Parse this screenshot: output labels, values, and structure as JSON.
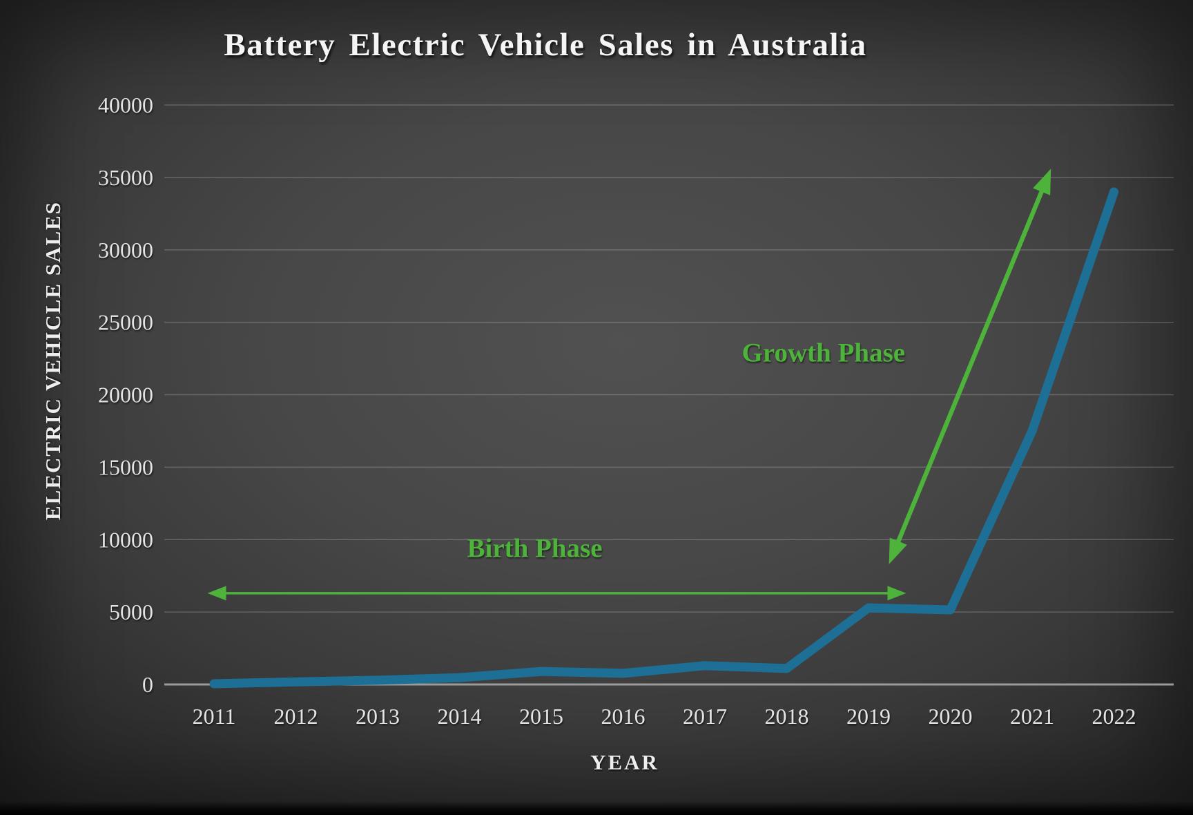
{
  "chart_data": {
    "type": "line",
    "title": "Battery Electric Vehicle Sales in Australia",
    "xlabel": "YEAR",
    "ylabel": "ELECTRIC VEHICLE SALES",
    "x": [
      2011,
      2012,
      2013,
      2014,
      2015,
      2016,
      2017,
      2018,
      2019,
      2020,
      2021,
      2022
    ],
    "values": [
      50,
      180,
      290,
      470,
      900,
      770,
      1300,
      1100,
      5290,
      5150,
      17500,
      34000
    ],
    "ylim": [
      0,
      40000
    ],
    "yticks": [
      0,
      5000,
      10000,
      15000,
      20000,
      25000,
      30000,
      35000,
      40000
    ],
    "grid": true,
    "legend": "none",
    "colors": {
      "line": "#1e6f96",
      "annotation_green": "#4db33b",
      "text": "#f5f5f5",
      "gridline": "rgba(255,255,255,0.20)",
      "axis_line": "#9b9b9b",
      "background_center": "#515151",
      "background_edge": "#232323"
    },
    "annotations": [
      {
        "label": "Birth Phase",
        "arrow": "double-headed",
        "x1": 2010.92,
        "y1": 6300,
        "x2": 2019.46,
        "y2": 6300,
        "label_x": 2014.92,
        "label_y": 9400,
        "shaft_width": 3.5,
        "head_len": 27,
        "head_w": 21
      },
      {
        "label": "Growth Phase",
        "arrow": "double-headed",
        "x1": 2019.25,
        "y1": 8300,
        "x2": 2021.23,
        "y2": 35600,
        "label_x": 2018.45,
        "label_y": 22900,
        "shaft_width": 6.5,
        "head_len": 36,
        "head_w": 27
      }
    ]
  }
}
